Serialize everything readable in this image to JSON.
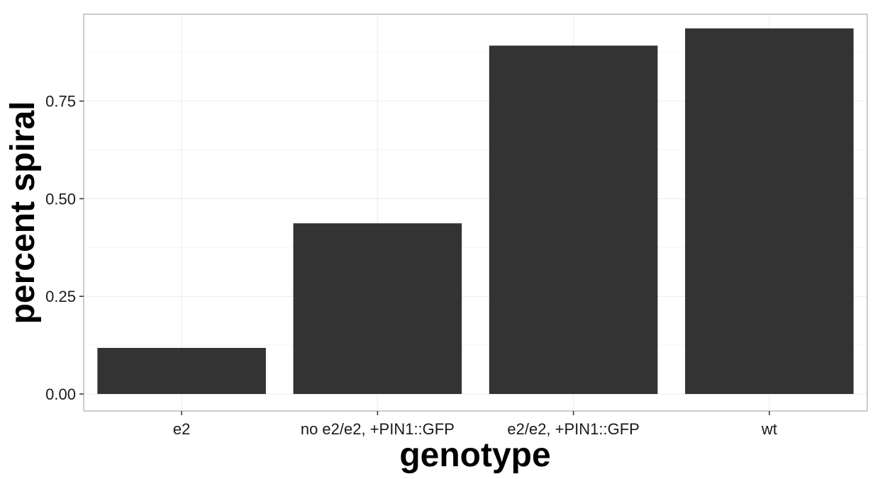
{
  "chart_data": {
    "type": "bar",
    "categories": [
      "e2",
      "no e2/e2, +PIN1::GFP",
      "e2/e2, +PIN1::GFP",
      "wt"
    ],
    "values": [
      0.118,
      0.437,
      0.892,
      0.936
    ],
    "xlabel": "genotype",
    "ylabel": "percent spiral",
    "ylim": [
      -0.0435,
      0.9725
    ],
    "yticks": [
      0,
      0.25,
      0.5,
      0.75
    ],
    "ytick_labels": [
      "0.00",
      "0.25",
      "0.50",
      "0.75"
    ],
    "grid": true,
    "colors": {
      "bar": "#333333",
      "grid_major": "#ebebeb",
      "grid_minor": "#f5f5f5",
      "panel_border": "#999999",
      "tick": "#333333"
    }
  }
}
